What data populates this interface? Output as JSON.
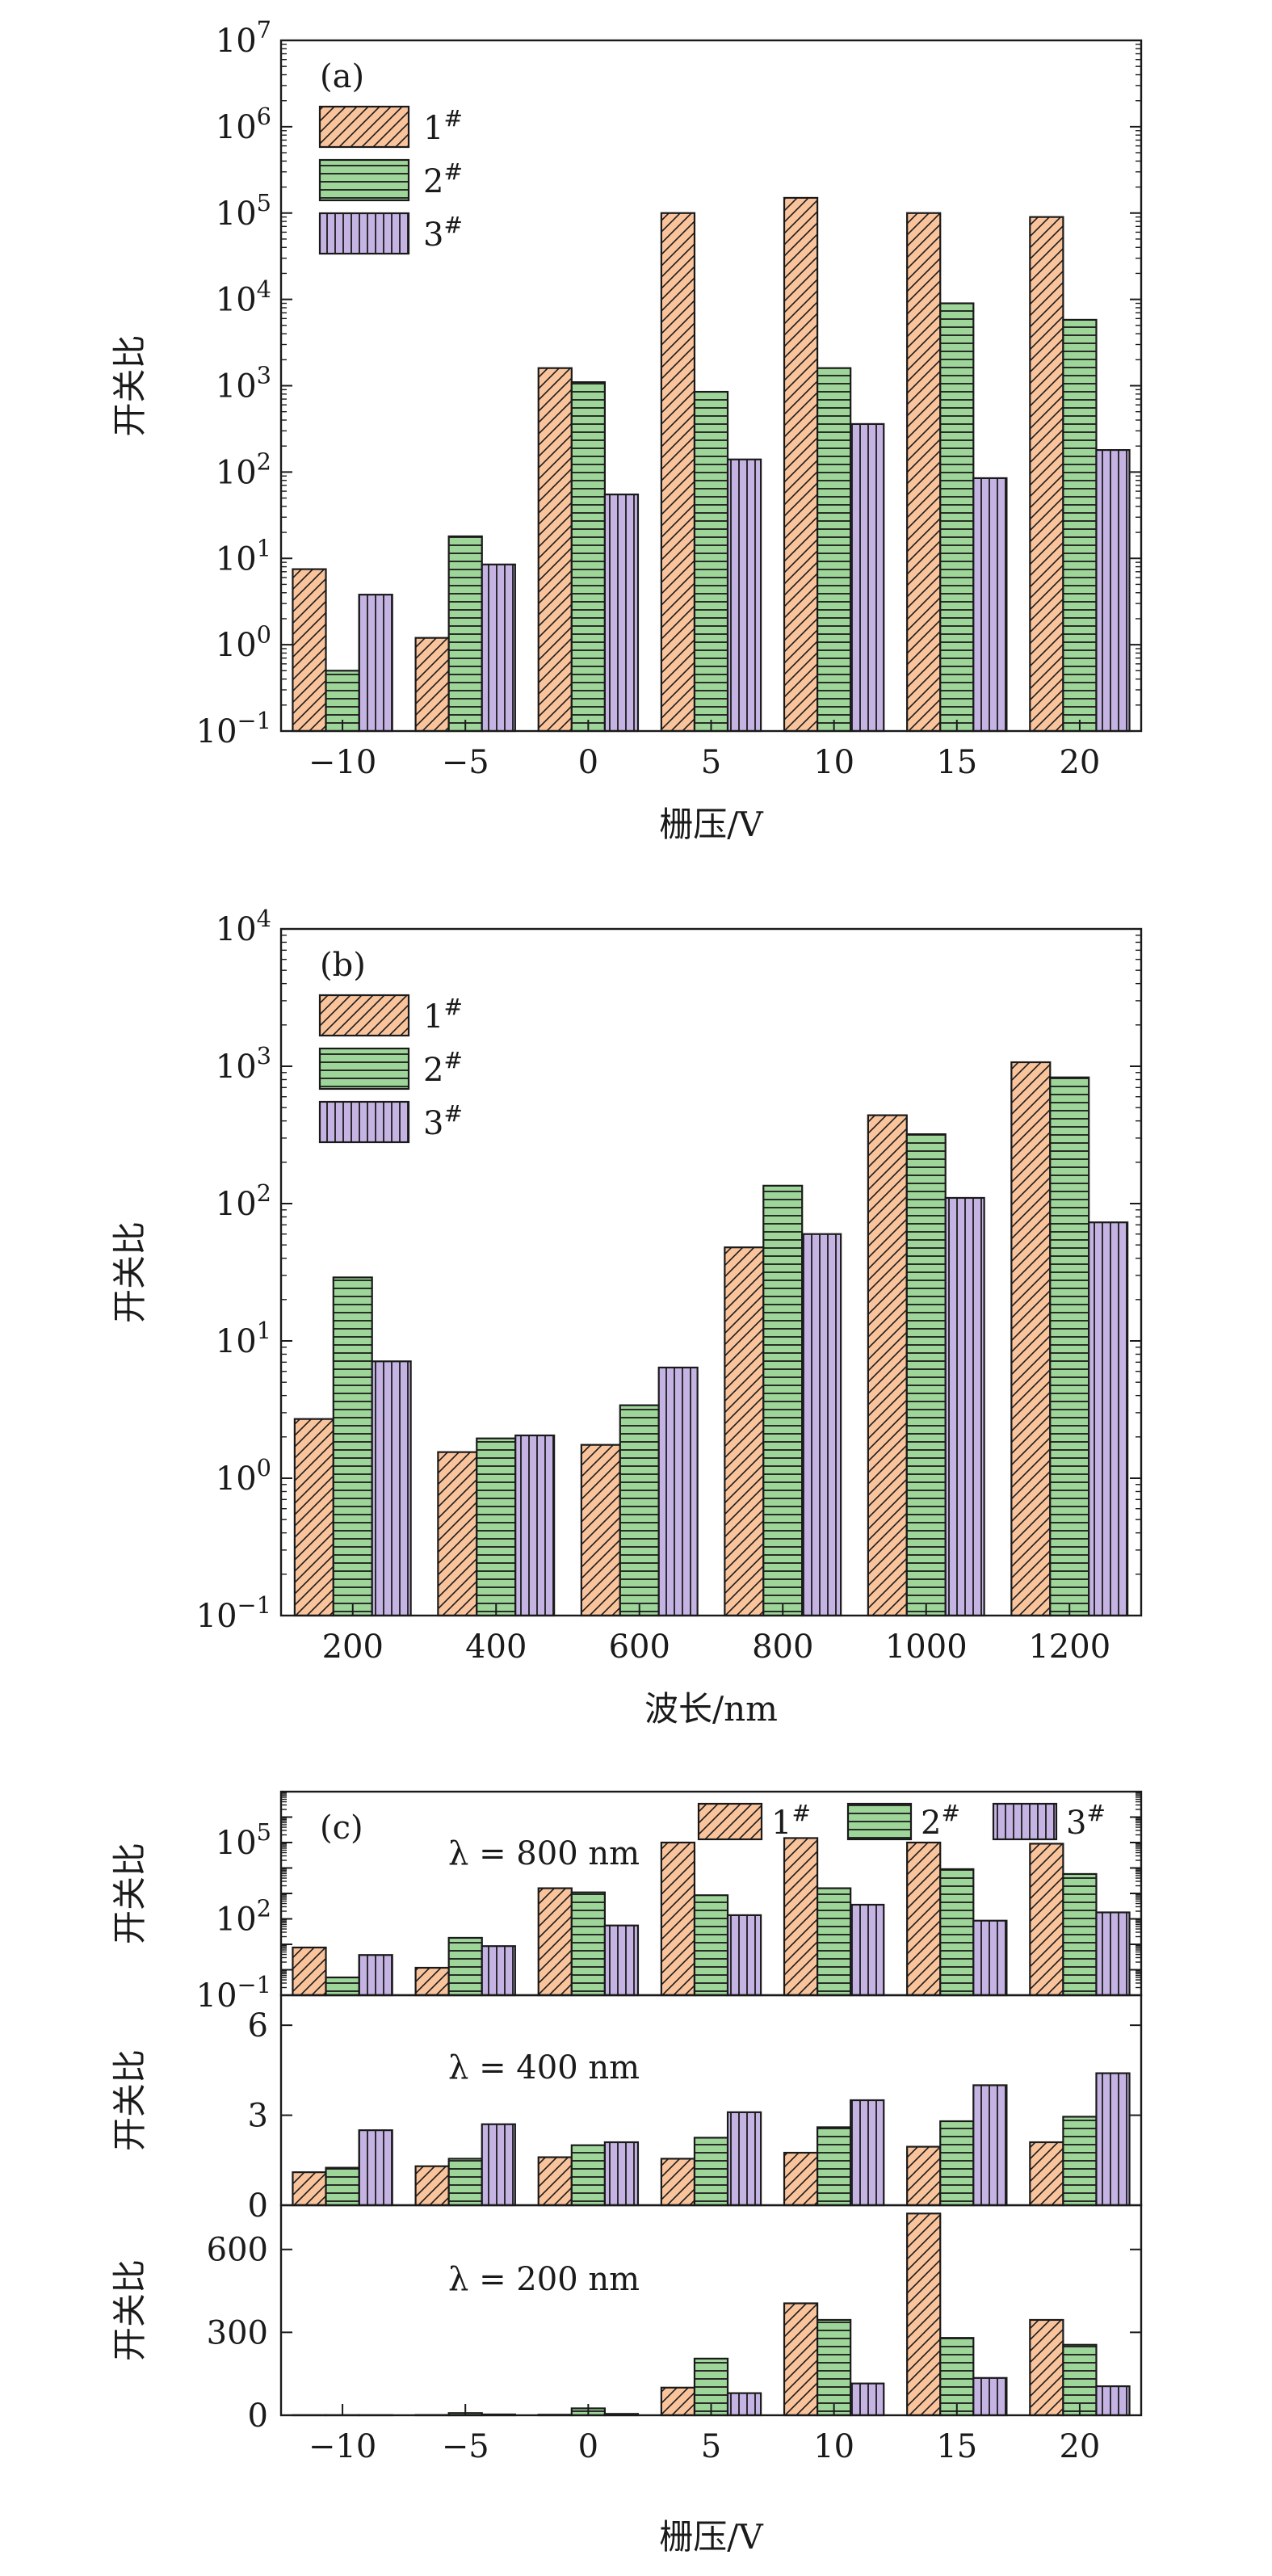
{
  "colors": {
    "series1": "#f9c39c",
    "series2": "#9ed69a",
    "series3": "#c5b4e3",
    "stroke": "#1a1a1a"
  },
  "legend_labels": [
    "1#",
    "2#",
    "3#"
  ],
  "chart_data": [
    {
      "type": "bar",
      "panel_label": "(a)",
      "scale": "log",
      "ylim_exponents": [
        -1,
        7
      ],
      "ytick_exponents": [
        -1,
        0,
        1,
        2,
        3,
        4,
        5,
        6,
        7
      ],
      "ylabel": "开关比",
      "xlabel": "栅压/V",
      "categories": [
        "−10",
        "−5",
        "0",
        "5",
        "10",
        "15",
        "20"
      ],
      "legend_position": "top-left",
      "series": [
        {
          "name": "1#",
          "values": [
            7.5,
            1.2,
            1600,
            100000,
            150000,
            100000,
            90000
          ]
        },
        {
          "name": "2#",
          "values": [
            0.5,
            18,
            1100,
            850,
            1600,
            9000,
            5800
          ]
        },
        {
          "name": "3#",
          "values": [
            3.8,
            8.5,
            55,
            140,
            360,
            85,
            180
          ]
        }
      ]
    },
    {
      "type": "bar",
      "panel_label": "(b)",
      "scale": "log",
      "ylim_exponents": [
        -1,
        4
      ],
      "ytick_exponents": [
        -1,
        0,
        1,
        2,
        3,
        4
      ],
      "ylabel": "开关比",
      "xlabel": "波长/nm",
      "categories": [
        "200",
        "400",
        "600",
        "800",
        "1000",
        "1200"
      ],
      "legend_position": "top-left",
      "series": [
        {
          "name": "1#",
          "values": [
            2.7,
            1.55,
            1.75,
            48,
            440,
            1070
          ]
        },
        {
          "name": "2#",
          "values": [
            29,
            1.95,
            3.4,
            135,
            320,
            830
          ]
        },
        {
          "name": "3#",
          "values": [
            7.1,
            2.05,
            6.4,
            60,
            110,
            73
          ]
        }
      ]
    },
    {
      "type": "bar",
      "panel_label": "(c)",
      "annotation": "λ = 800 nm",
      "scale": "log",
      "ylim_exponents": [
        -1,
        7
      ],
      "ytick_exponents": [
        -1,
        2,
        5
      ],
      "ylabel": "开关比",
      "categories": [
        "−10",
        "−5",
        "0",
        "5",
        "10",
        "15",
        "20"
      ],
      "legend_position": "top-right",
      "series": [
        {
          "name": "1#",
          "values": [
            7.5,
            1.2,
            1600,
            100000,
            150000,
            100000,
            90000
          ]
        },
        {
          "name": "2#",
          "values": [
            0.5,
            18,
            1100,
            850,
            1600,
            9000,
            5800
          ]
        },
        {
          "name": "3#",
          "values": [
            3.8,
            8.5,
            55,
            140,
            360,
            85,
            180
          ]
        }
      ]
    },
    {
      "type": "bar",
      "annotation": "λ = 400 nm",
      "scale": "linear",
      "ylim": [
        0,
        7
      ],
      "yticks": [
        0,
        3,
        6
      ],
      "ylabel": "开关比",
      "categories": [
        "−10",
        "−5",
        "0",
        "5",
        "10",
        "15",
        "20"
      ],
      "series": [
        {
          "name": "1#",
          "values": [
            1.1,
            1.3,
            1.6,
            1.55,
            1.75,
            1.95,
            2.1
          ]
        },
        {
          "name": "2#",
          "values": [
            1.25,
            1.55,
            2.0,
            2.25,
            2.6,
            2.8,
            2.95
          ]
        },
        {
          "name": "3#",
          "values": [
            2.5,
            2.7,
            2.1,
            3.1,
            3.5,
            4.0,
            4.4
          ]
        }
      ]
    },
    {
      "type": "bar",
      "annotation": "λ = 200 nm",
      "scale": "linear",
      "ylim": [
        0,
        760
      ],
      "yticks": [
        0,
        300,
        600
      ],
      "ylabel": "开关比",
      "xlabel": "栅压/V",
      "categories": [
        "−10",
        "−5",
        "0",
        "5",
        "10",
        "15",
        "20"
      ],
      "series": [
        {
          "name": "1#",
          "values": [
            0.5,
            1,
            2,
            100,
            405,
            730,
            345
          ]
        },
        {
          "name": "2#",
          "values": [
            0.5,
            8,
            25,
            205,
            345,
            280,
            255
          ]
        },
        {
          "name": "3#",
          "values": [
            0.5,
            3,
            5,
            80,
            115,
            135,
            105
          ]
        }
      ]
    }
  ]
}
